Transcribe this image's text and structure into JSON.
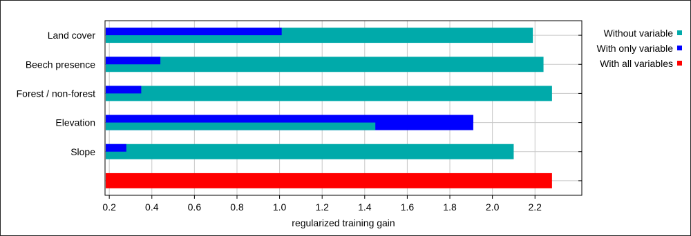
{
  "chart_data": {
    "type": "bar",
    "orientation": "horizontal",
    "categories": [
      "Land cover",
      "Beech presence",
      "Forest / non-forest",
      "Elevation",
      "Slope"
    ],
    "series": [
      {
        "name": "Without variable",
        "color": "#00aaaa",
        "values": [
          2.19,
          2.24,
          2.28,
          1.45,
          2.1
        ]
      },
      {
        "name": "With only variable",
        "color": "#0000ff",
        "values": [
          1.01,
          0.44,
          0.35,
          1.91,
          0.28
        ]
      }
    ],
    "all_variables": {
      "name": "With all variables",
      "color": "#ff0000",
      "value": 2.28
    },
    "xlabel": "regularized training gain",
    "xlim": [
      0.18,
      2.42
    ],
    "xticks": [
      "0.2",
      "0.4",
      "0.6",
      "0.8",
      "1.0",
      "1.2",
      "1.4",
      "1.6",
      "1.8",
      "2.0",
      "2.2"
    ],
    "grid": true,
    "legend_position": "right"
  }
}
